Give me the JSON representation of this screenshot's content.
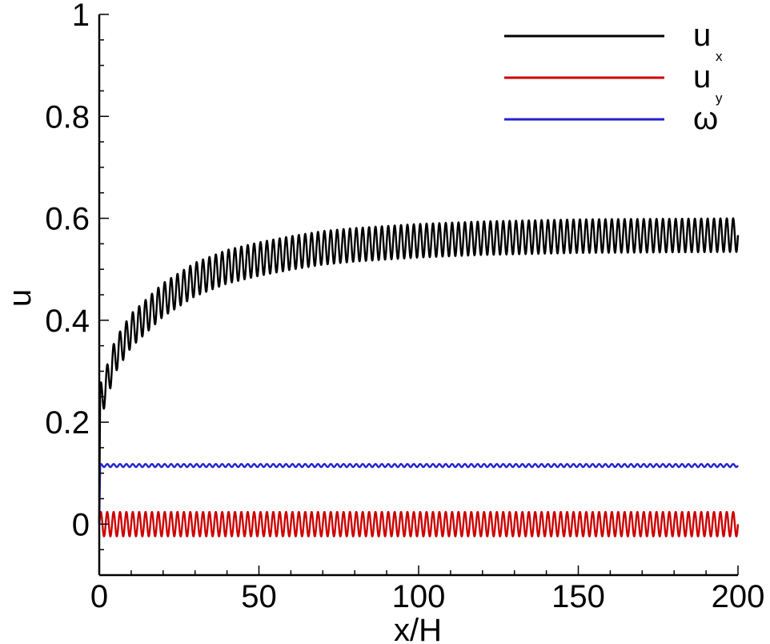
{
  "chart_data": {
    "type": "line",
    "title": "",
    "xlabel": "x/H",
    "ylabel": "u",
    "xlim": [
      0,
      200
    ],
    "ylim": [
      -0.1,
      1.0
    ],
    "xticks": [
      0,
      50,
      100,
      150,
      200
    ],
    "yticks": [
      0,
      0.2,
      0.4,
      0.6,
      0.8,
      1
    ],
    "ytick_labels": [
      "0",
      "0.2",
      "0.4",
      "0.6",
      "0.8",
      "1"
    ],
    "xtick_labels": [
      "0",
      "50",
      "100",
      "150",
      "200"
    ],
    "grid": false,
    "legend": "top-right",
    "series": [
      {
        "name": "u",
        "subscript": "x",
        "color": "#000000",
        "oscillation": {
          "amplitude": 0.033,
          "period": 2.0
        },
        "mean": {
          "x": [
            0,
            1,
            2,
            5,
            10,
            20,
            30,
            40,
            50,
            60,
            70,
            80,
            100,
            120,
            150,
            200
          ],
          "y": [
            0.24,
            0.25,
            0.27,
            0.33,
            0.38,
            0.44,
            0.48,
            0.505,
            0.52,
            0.532,
            0.542,
            0.548,
            0.556,
            0.561,
            0.565,
            0.567
          ]
        }
      },
      {
        "name": "u",
        "subscript": "y",
        "color": "#cc0000",
        "oscillation": {
          "amplitude": 0.024,
          "period": 2.0
        },
        "mean": {
          "x": [
            0,
            200
          ],
          "y": [
            0.0,
            0.0
          ]
        }
      },
      {
        "name": "ω",
        "subscript": "",
        "color": "#2222cc",
        "oscillation": {
          "amplitude": 0.003,
          "period": 2.0
        },
        "mean": {
          "x": [
            0,
            1,
            200
          ],
          "y": [
            0.115,
            0.115,
            0.115
          ]
        }
      }
    ]
  }
}
